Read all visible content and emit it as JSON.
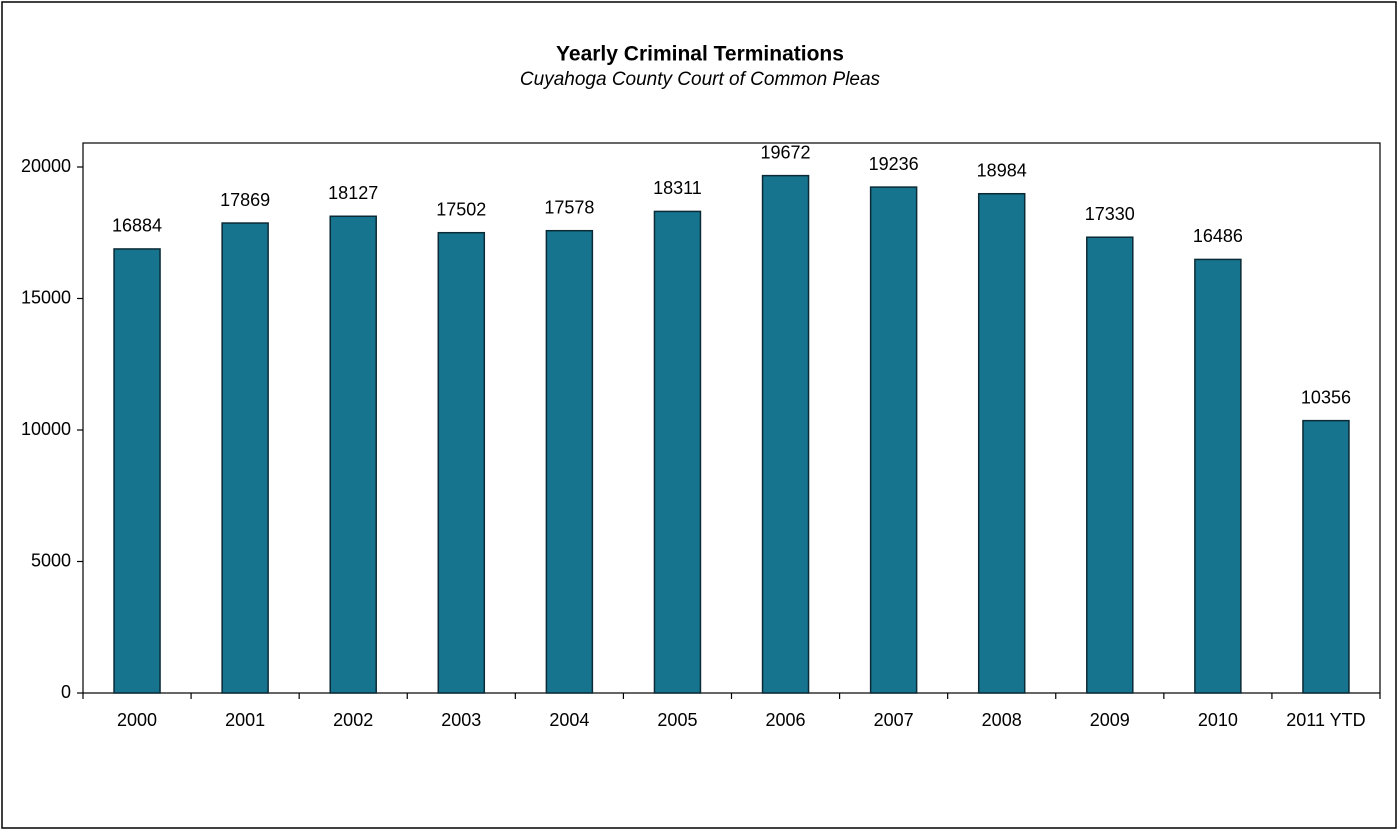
{
  "chart_data": {
    "type": "bar",
    "title": "Yearly Criminal Terminations",
    "subtitle": "Cuyahoga County Court of Common Pleas",
    "categories": [
      "2000",
      "2001",
      "2002",
      "2003",
      "2004",
      "2005",
      "2006",
      "2007",
      "2008",
      "2009",
      "2010",
      "2011 YTD"
    ],
    "values": [
      16884,
      17869,
      18127,
      17502,
      17578,
      18311,
      19672,
      19236,
      18984,
      17330,
      16486,
      10356
    ],
    "color": "#17748f",
    "ylim": [
      0,
      20000
    ],
    "yticks": [
      0,
      5000,
      10000,
      15000,
      20000
    ],
    "grid": false
  }
}
